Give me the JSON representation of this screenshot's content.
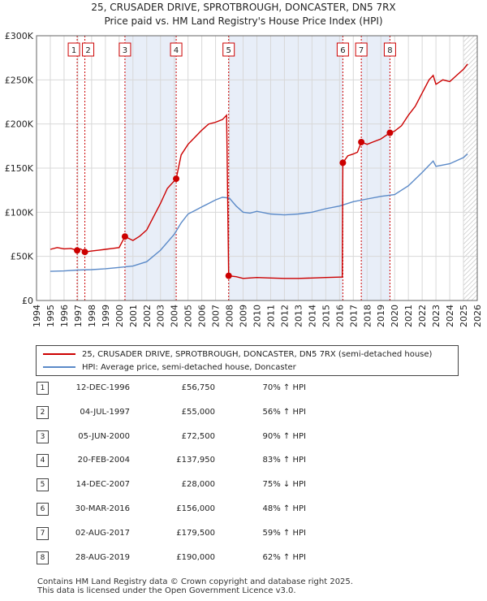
{
  "title_line1": "25, CRUSADER DRIVE, SPROTBROUGH, DONCASTER, DN5 7RX",
  "title_line2": "Price paid vs. HM Land Registry's House Price Index (HPI)",
  "legend": {
    "property": "25, CRUSADER DRIVE, SPROTBROUGH, DONCASTER, DN5 7RX (semi-detached house)",
    "hpi": "HPI: Average price, semi-detached house, Doncaster"
  },
  "colors": {
    "property": "#cc0000",
    "hpi": "#5b8ac8",
    "shade": "#e8eef8",
    "vline": "#cc0000",
    "grid": "#d8d8d8"
  },
  "sales": [
    {
      "n": "1",
      "date": "12-DEC-1996",
      "price": "£56,750",
      "hpi": "70% ↑ HPI"
    },
    {
      "n": "2",
      "date": "04-JUL-1997",
      "price": "£55,000",
      "hpi": "56% ↑ HPI"
    },
    {
      "n": "3",
      "date": "05-JUN-2000",
      "price": "£72,500",
      "hpi": "90% ↑ HPI"
    },
    {
      "n": "4",
      "date": "20-FEB-2004",
      "price": "£137,950",
      "hpi": "83% ↑ HPI"
    },
    {
      "n": "5",
      "date": "14-DEC-2007",
      "price": "£28,000",
      "hpi": "75% ↓ HPI"
    },
    {
      "n": "6",
      "date": "30-MAR-2016",
      "price": "£156,000",
      "hpi": "48% ↑ HPI"
    },
    {
      "n": "7",
      "date": "02-AUG-2017",
      "price": "£179,500",
      "hpi": "59% ↑ HPI"
    },
    {
      "n": "8",
      "date": "28-AUG-2019",
      "price": "£190,000",
      "hpi": "62% ↑ HPI"
    }
  ],
  "footer1": "Contains HM Land Registry data © Crown copyright and database right 2025.",
  "footer2": "This data is licensed under the Open Government Licence v3.0.",
  "chart_data": {
    "type": "line",
    "title": "25, CRUSADER DRIVE, SPROTBROUGH, DONCASTER, DN5 7RX",
    "subtitle": "Price paid vs. HM Land Registry's House Price Index (HPI)",
    "xlim": [
      1994,
      2026
    ],
    "ylim": [
      0,
      300000
    ],
    "x_ticks": [
      1994,
      1995,
      1996,
      1997,
      1998,
      1999,
      2000,
      2001,
      2002,
      2003,
      2004,
      2005,
      2006,
      2007,
      2008,
      2009,
      2010,
      2011,
      2012,
      2013,
      2014,
      2015,
      2016,
      2017,
      2018,
      2019,
      2020,
      2021,
      2022,
      2023,
      2024,
      2025,
      2026
    ],
    "y_ticks": [
      0,
      50000,
      100000,
      150000,
      200000,
      250000,
      300000
    ],
    "y_tick_labels": [
      "£0",
      "£50K",
      "£100K",
      "£150K",
      "£200K",
      "£250K",
      "£300K"
    ],
    "shaded_ranges": [
      [
        2000.42,
        2004.14
      ],
      [
        2007.95,
        2016.24
      ],
      [
        2017.58,
        2019.66
      ]
    ],
    "hatched_from": 2025.0,
    "sale_markers": [
      {
        "label": "1",
        "x": 1996.95,
        "y": 56750
      },
      {
        "label": "2",
        "x": 1997.51,
        "y": 55000
      },
      {
        "label": "3",
        "x": 2000.42,
        "y": 72500
      },
      {
        "label": "4",
        "x": 2004.14,
        "y": 137950
      },
      {
        "label": "5",
        "x": 2007.95,
        "y": 28000
      },
      {
        "label": "6",
        "x": 2016.24,
        "y": 156000
      },
      {
        "label": "7",
        "x": 2017.58,
        "y": 179500
      },
      {
        "label": "8",
        "x": 2019.66,
        "y": 190000
      }
    ],
    "series": [
      {
        "name": "25, CRUSADER DRIVE, SPROTBROUGH, DONCASTER, DN5 7RX (semi-detached house)",
        "points": [
          [
            1995.0,
            58000
          ],
          [
            1995.5,
            60000
          ],
          [
            1996.0,
            58500
          ],
          [
            1996.5,
            59000
          ],
          [
            1996.95,
            56750
          ],
          [
            1997.2,
            58500
          ],
          [
            1997.51,
            55000
          ],
          [
            1998.0,
            56000
          ],
          [
            1998.5,
            57000
          ],
          [
            1999.0,
            58000
          ],
          [
            1999.5,
            59000
          ],
          [
            2000.0,
            60000
          ],
          [
            2000.42,
            72500
          ],
          [
            2001.0,
            68000
          ],
          [
            2001.5,
            73000
          ],
          [
            2002.0,
            80000
          ],
          [
            2002.5,
            95000
          ],
          [
            2003.0,
            110000
          ],
          [
            2003.5,
            127000
          ],
          [
            2004.14,
            137950
          ],
          [
            2004.5,
            165000
          ],
          [
            2005.0,
            177000
          ],
          [
            2005.5,
            185000
          ],
          [
            2006.0,
            193000
          ],
          [
            2006.5,
            200000
          ],
          [
            2007.0,
            202000
          ],
          [
            2007.5,
            205000
          ],
          [
            2007.8,
            210000
          ],
          [
            2007.95,
            28000
          ],
          [
            2008.5,
            27000
          ],
          [
            2009.0,
            25000
          ],
          [
            2010.0,
            26000
          ],
          [
            2011.0,
            25500
          ],
          [
            2012.0,
            25000
          ],
          [
            2013.0,
            25000
          ],
          [
            2014.0,
            25500
          ],
          [
            2015.0,
            26000
          ],
          [
            2016.0,
            26500
          ],
          [
            2016.2,
            26500
          ],
          [
            2016.24,
            156000
          ],
          [
            2016.6,
            164000
          ],
          [
            2017.0,
            166000
          ],
          [
            2017.3,
            168000
          ],
          [
            2017.58,
            179500
          ],
          [
            2018.0,
            177000
          ],
          [
            2018.5,
            180000
          ],
          [
            2019.0,
            183000
          ],
          [
            2019.66,
            190000
          ],
          [
            2020.0,
            192000
          ],
          [
            2020.5,
            198000
          ],
          [
            2021.0,
            210000
          ],
          [
            2021.5,
            220000
          ],
          [
            2022.0,
            235000
          ],
          [
            2022.5,
            250000
          ],
          [
            2022.8,
            255000
          ],
          [
            2023.0,
            245000
          ],
          [
            2023.5,
            250000
          ],
          [
            2024.0,
            248000
          ],
          [
            2024.5,
            255000
          ],
          [
            2025.0,
            262000
          ],
          [
            2025.3,
            268000
          ]
        ]
      },
      {
        "name": "HPI: Average price, semi-detached house, Doncaster",
        "points": [
          [
            1995.0,
            33000
          ],
          [
            1996.0,
            33500
          ],
          [
            1997.0,
            34500
          ],
          [
            1998.0,
            35000
          ],
          [
            1999.0,
            36000
          ],
          [
            2000.0,
            37500
          ],
          [
            2001.0,
            39000
          ],
          [
            2002.0,
            44000
          ],
          [
            2003.0,
            57000
          ],
          [
            2004.0,
            75000
          ],
          [
            2004.5,
            88000
          ],
          [
            2005.0,
            98000
          ],
          [
            2005.5,
            102000
          ],
          [
            2006.0,
            106000
          ],
          [
            2006.5,
            110000
          ],
          [
            2007.0,
            114000
          ],
          [
            2007.5,
            117000
          ],
          [
            2008.0,
            116000
          ],
          [
            2008.5,
            107000
          ],
          [
            2009.0,
            100000
          ],
          [
            2009.5,
            99000
          ],
          [
            2010.0,
            101000
          ],
          [
            2011.0,
            98000
          ],
          [
            2012.0,
            97000
          ],
          [
            2013.0,
            98000
          ],
          [
            2014.0,
            100000
          ],
          [
            2015.0,
            104000
          ],
          [
            2016.0,
            107000
          ],
          [
            2017.0,
            112000
          ],
          [
            2018.0,
            115000
          ],
          [
            2019.0,
            118000
          ],
          [
            2020.0,
            120000
          ],
          [
            2021.0,
            130000
          ],
          [
            2022.0,
            145000
          ],
          [
            2022.8,
            158000
          ],
          [
            2023.0,
            152000
          ],
          [
            2024.0,
            155000
          ],
          [
            2025.0,
            162000
          ],
          [
            2025.3,
            166000
          ]
        ]
      }
    ]
  }
}
